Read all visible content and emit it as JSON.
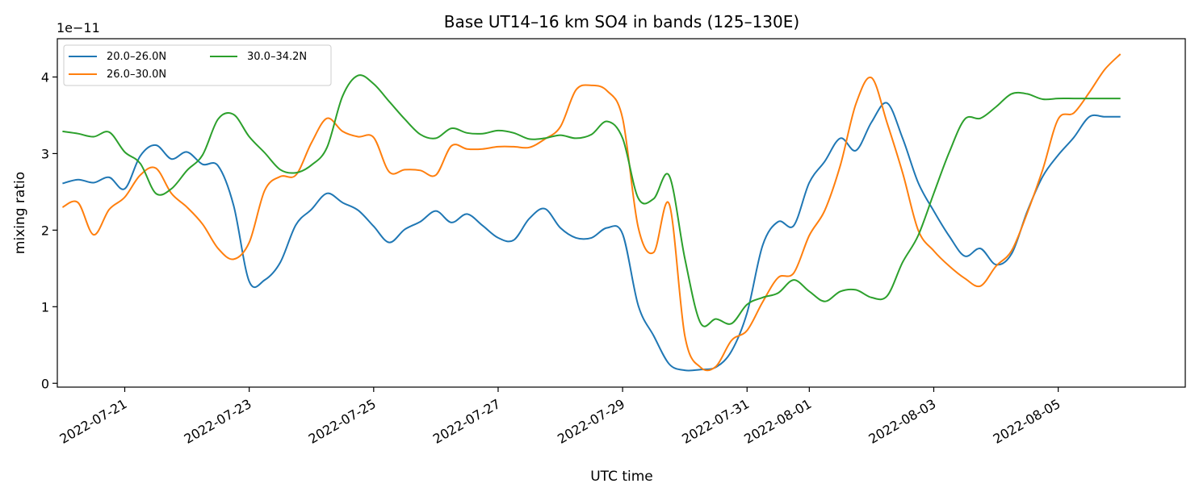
{
  "chart_data": {
    "type": "line",
    "title": "Base UT14–16 km SO4 in bands (125–130E)",
    "xlabel": "UTC time",
    "ylabel": "mixing ratio",
    "y_offset_label": "1e−11",
    "y_scale": 1e-11,
    "xlim": [
      "2022-07-19T22:00",
      "2022-08-07T01:00"
    ],
    "ylim": [
      -0.05,
      4.5
    ],
    "yticks": [
      0,
      1,
      2,
      3,
      4
    ],
    "ytick_labels": [
      "0",
      "1",
      "2",
      "3",
      "4"
    ],
    "xticks": [
      "2022-07-21",
      "2022-07-23",
      "2022-07-25",
      "2022-07-27",
      "2022-07-29",
      "2022-07-31",
      "2022-08-01",
      "2022-08-03",
      "2022-08-05"
    ],
    "xtick_labels": [
      "2022-07-21",
      "2022-07-23",
      "2022-07-25",
      "2022-07-27",
      "2022-07-29",
      "2022-07-31",
      "2022-08-01",
      "2022-08-03",
      "2022-08-05"
    ],
    "legend_position": "upper-left",
    "legend_columns": 2,
    "grid": false,
    "series": [
      {
        "name": "20.0–26.0N",
        "color": "#1f77b4",
        "x": [
          "2022-07-20T00:00",
          "2022-07-20T06:00",
          "2022-07-20T12:00",
          "2022-07-20T18:00",
          "2022-07-21T00:00",
          "2022-07-21T06:00",
          "2022-07-21T12:00",
          "2022-07-21T18:00",
          "2022-07-22T00:00",
          "2022-07-22T06:00",
          "2022-07-22T12:00",
          "2022-07-22T18:00",
          "2022-07-23T00:00",
          "2022-07-23T06:00",
          "2022-07-23T12:00",
          "2022-07-23T18:00",
          "2022-07-24T00:00",
          "2022-07-24T06:00",
          "2022-07-24T12:00",
          "2022-07-24T18:00",
          "2022-07-25T00:00",
          "2022-07-25T06:00",
          "2022-07-25T12:00",
          "2022-07-25T18:00",
          "2022-07-26T00:00",
          "2022-07-26T06:00",
          "2022-07-26T12:00",
          "2022-07-26T18:00",
          "2022-07-27T00:00",
          "2022-07-27T06:00",
          "2022-07-27T12:00",
          "2022-07-27T18:00",
          "2022-07-28T00:00",
          "2022-07-28T06:00",
          "2022-07-28T12:00",
          "2022-07-28T18:00",
          "2022-07-29T00:00",
          "2022-07-29T06:00",
          "2022-07-29T12:00",
          "2022-07-29T18:00",
          "2022-07-30T00:00",
          "2022-07-30T06:00",
          "2022-07-30T12:00",
          "2022-07-30T18:00",
          "2022-07-31T00:00",
          "2022-07-31T06:00",
          "2022-07-31T12:00",
          "2022-07-31T18:00",
          "2022-08-01T00:00",
          "2022-08-01T06:00",
          "2022-08-01T12:00",
          "2022-08-01T18:00",
          "2022-08-02T00:00",
          "2022-08-02T06:00",
          "2022-08-02T12:00",
          "2022-08-02T18:00",
          "2022-08-03T00:00",
          "2022-08-03T06:00",
          "2022-08-03T12:00",
          "2022-08-03T18:00",
          "2022-08-04T00:00",
          "2022-08-04T06:00",
          "2022-08-04T12:00",
          "2022-08-04T18:00",
          "2022-08-05T00:00",
          "2022-08-05T06:00",
          "2022-08-05T12:00",
          "2022-08-05T18:00",
          "2022-08-06T00:00"
        ],
        "y": [
          2.61,
          2.66,
          2.62,
          2.69,
          2.54,
          2.97,
          3.11,
          2.93,
          3.02,
          2.86,
          2.84,
          2.32,
          1.33,
          1.35,
          1.58,
          2.07,
          2.27,
          2.48,
          2.36,
          2.26,
          2.05,
          1.84,
          2.01,
          2.11,
          2.25,
          2.1,
          2.21,
          2.06,
          1.9,
          1.87,
          2.15,
          2.28,
          2.03,
          1.9,
          1.9,
          2.03,
          1.95,
          1.02,
          0.62,
          0.25,
          0.17,
          0.18,
          0.21,
          0.42,
          0.92,
          1.8,
          2.11,
          2.06,
          2.62,
          2.9,
          3.2,
          3.04,
          3.41,
          3.66,
          3.2,
          2.62,
          2.25,
          1.92,
          1.66,
          1.76,
          1.55,
          1.69,
          2.24,
          2.7,
          2.98,
          3.21,
          3.48,
          3.48,
          3.48
        ]
      },
      {
        "name": "26.0–30.0N",
        "color": "#ff7f0e",
        "x": [
          "2022-07-20T00:00",
          "2022-07-20T06:00",
          "2022-07-20T12:00",
          "2022-07-20T18:00",
          "2022-07-21T00:00",
          "2022-07-21T06:00",
          "2022-07-21T12:00",
          "2022-07-21T18:00",
          "2022-07-22T00:00",
          "2022-07-22T06:00",
          "2022-07-22T12:00",
          "2022-07-22T18:00",
          "2022-07-23T00:00",
          "2022-07-23T06:00",
          "2022-07-23T12:00",
          "2022-07-23T18:00",
          "2022-07-24T00:00",
          "2022-07-24T06:00",
          "2022-07-24T12:00",
          "2022-07-24T18:00",
          "2022-07-25T00:00",
          "2022-07-25T06:00",
          "2022-07-25T12:00",
          "2022-07-25T18:00",
          "2022-07-26T00:00",
          "2022-07-26T06:00",
          "2022-07-26T12:00",
          "2022-07-26T18:00",
          "2022-07-27T00:00",
          "2022-07-27T06:00",
          "2022-07-27T12:00",
          "2022-07-27T18:00",
          "2022-07-28T00:00",
          "2022-07-28T06:00",
          "2022-07-28T12:00",
          "2022-07-28T18:00",
          "2022-07-29T00:00",
          "2022-07-29T06:00",
          "2022-07-29T12:00",
          "2022-07-29T18:00",
          "2022-07-30T00:00",
          "2022-07-30T06:00",
          "2022-07-30T12:00",
          "2022-07-30T18:00",
          "2022-07-31T00:00",
          "2022-07-31T06:00",
          "2022-07-31T12:00",
          "2022-07-31T18:00",
          "2022-08-01T00:00",
          "2022-08-01T06:00",
          "2022-08-01T12:00",
          "2022-08-01T18:00",
          "2022-08-02T00:00",
          "2022-08-02T06:00",
          "2022-08-02T12:00",
          "2022-08-02T18:00",
          "2022-08-03T00:00",
          "2022-08-03T06:00",
          "2022-08-03T12:00",
          "2022-08-03T18:00",
          "2022-08-04T00:00",
          "2022-08-04T06:00",
          "2022-08-04T12:00",
          "2022-08-04T18:00",
          "2022-08-05T00:00",
          "2022-08-05T06:00",
          "2022-08-05T12:00",
          "2022-08-05T18:00",
          "2022-08-06T00:00"
        ],
        "y": [
          2.3,
          2.36,
          1.94,
          2.27,
          2.43,
          2.72,
          2.81,
          2.48,
          2.3,
          2.08,
          1.76,
          1.62,
          1.84,
          2.52,
          2.7,
          2.72,
          3.14,
          3.46,
          3.29,
          3.22,
          3.21,
          2.76,
          2.79,
          2.78,
          2.72,
          3.1,
          3.06,
          3.06,
          3.09,
          3.09,
          3.08,
          3.19,
          3.35,
          3.83,
          3.89,
          3.82,
          3.46,
          2.04,
          1.71,
          2.34,
          0.62,
          0.21,
          0.22,
          0.56,
          0.69,
          1.06,
          1.38,
          1.44,
          1.93,
          2.26,
          2.85,
          3.65,
          3.99,
          3.4,
          2.75,
          2.0,
          1.73,
          1.53,
          1.37,
          1.27,
          1.53,
          1.73,
          2.22,
          2.79,
          3.45,
          3.53,
          3.8,
          4.1,
          4.3
        ]
      },
      {
        "name": "30.0–34.2N",
        "color": "#2ca02c",
        "x": [
          "2022-07-20T00:00",
          "2022-07-20T06:00",
          "2022-07-20T12:00",
          "2022-07-20T18:00",
          "2022-07-21T00:00",
          "2022-07-21T06:00",
          "2022-07-21T12:00",
          "2022-07-21T18:00",
          "2022-07-22T00:00",
          "2022-07-22T06:00",
          "2022-07-22T12:00",
          "2022-07-22T18:00",
          "2022-07-23T00:00",
          "2022-07-23T06:00",
          "2022-07-23T12:00",
          "2022-07-23T18:00",
          "2022-07-24T00:00",
          "2022-07-24T06:00",
          "2022-07-24T12:00",
          "2022-07-24T18:00",
          "2022-07-25T00:00",
          "2022-07-25T06:00",
          "2022-07-25T12:00",
          "2022-07-25T18:00",
          "2022-07-26T00:00",
          "2022-07-26T06:00",
          "2022-07-26T12:00",
          "2022-07-26T18:00",
          "2022-07-27T00:00",
          "2022-07-27T06:00",
          "2022-07-27T12:00",
          "2022-07-27T18:00",
          "2022-07-28T00:00",
          "2022-07-28T06:00",
          "2022-07-28T12:00",
          "2022-07-28T18:00",
          "2022-07-29T00:00",
          "2022-07-29T06:00",
          "2022-07-29T12:00",
          "2022-07-29T18:00",
          "2022-07-30T00:00",
          "2022-07-30T06:00",
          "2022-07-30T12:00",
          "2022-07-30T18:00",
          "2022-07-31T00:00",
          "2022-07-31T06:00",
          "2022-07-31T12:00",
          "2022-07-31T18:00",
          "2022-08-01T00:00",
          "2022-08-01T06:00",
          "2022-08-01T12:00",
          "2022-08-01T18:00",
          "2022-08-02T00:00",
          "2022-08-02T06:00",
          "2022-08-02T12:00",
          "2022-08-02T18:00",
          "2022-08-03T00:00",
          "2022-08-03T06:00",
          "2022-08-03T12:00",
          "2022-08-03T18:00",
          "2022-08-04T00:00",
          "2022-08-04T06:00",
          "2022-08-04T12:00",
          "2022-08-04T18:00",
          "2022-08-05T00:00",
          "2022-08-05T06:00",
          "2022-08-05T12:00",
          "2022-08-05T18:00",
          "2022-08-06T00:00"
        ],
        "y": [
          3.29,
          3.26,
          3.22,
          3.28,
          3.02,
          2.87,
          2.48,
          2.54,
          2.78,
          2.98,
          3.45,
          3.51,
          3.22,
          3.01,
          2.79,
          2.75,
          2.85,
          3.08,
          3.75,
          4.02,
          3.91,
          3.68,
          3.45,
          3.25,
          3.2,
          3.33,
          3.27,
          3.26,
          3.3,
          3.27,
          3.19,
          3.2,
          3.24,
          3.2,
          3.25,
          3.42,
          3.2,
          2.42,
          2.41,
          2.71,
          1.63,
          0.79,
          0.84,
          0.78,
          1.03,
          1.12,
          1.18,
          1.35,
          1.2,
          1.07,
          1.2,
          1.22,
          1.12,
          1.14,
          1.58,
          1.93,
          2.48,
          3.02,
          3.45,
          3.46,
          3.61,
          3.78,
          3.78,
          3.71,
          3.72,
          3.72,
          3.72,
          3.72,
          3.72
        ]
      }
    ]
  }
}
